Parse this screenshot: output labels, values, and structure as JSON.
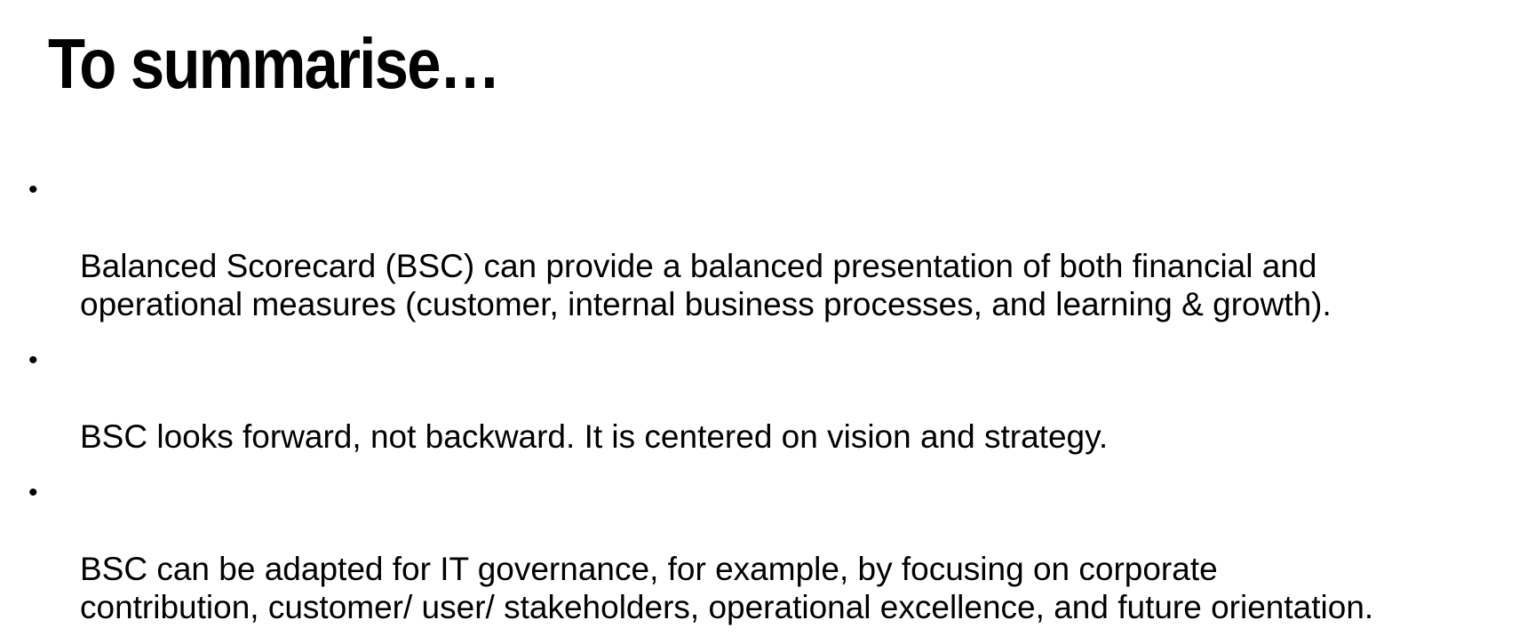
{
  "slide": {
    "title": "To summarise…",
    "bullet_symbol": "•",
    "bullets": [
      {
        "text": "Balanced Scorecard (BSC) can provide a balanced presentation of both financial and\noperational measures (customer, internal business processes, and learning & growth)."
      },
      {
        "text": "BSC looks forward, not backward. It is centered on vision and strategy."
      },
      {
        "text": "BSC can be adapted for IT governance, for example, by focusing on corporate\ncontribution, customer/ user/ stakeholders, operational excellence, and future orientation."
      }
    ]
  }
}
